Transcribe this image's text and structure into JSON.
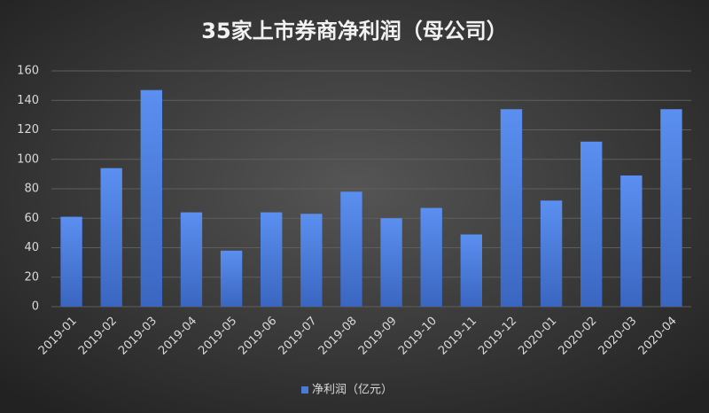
{
  "chart_data": {
    "type": "bar",
    "title": "35家上市券商净利润（母公司）",
    "categories": [
      "2019-01",
      "2019-02",
      "2019-03",
      "2019-04",
      "2019-05",
      "2019-06",
      "2019-07",
      "2019-08",
      "2019-09",
      "2019-10",
      "2019-11",
      "2019-12",
      "2020-01",
      "2020-02",
      "2020-03",
      "2020-04"
    ],
    "series": [
      {
        "name": "净利润（亿元）",
        "color": "#4a7bd6",
        "values": [
          61,
          94,
          147,
          64,
          38,
          64,
          63,
          78,
          60,
          67,
          49,
          134,
          72,
          112,
          89,
          134
        ]
      }
    ],
    "ylim": [
      0,
      160
    ],
    "yticks": [
      0,
      20,
      40,
      60,
      80,
      100,
      120,
      140,
      160
    ],
    "grid": true,
    "legend": "bottom"
  }
}
